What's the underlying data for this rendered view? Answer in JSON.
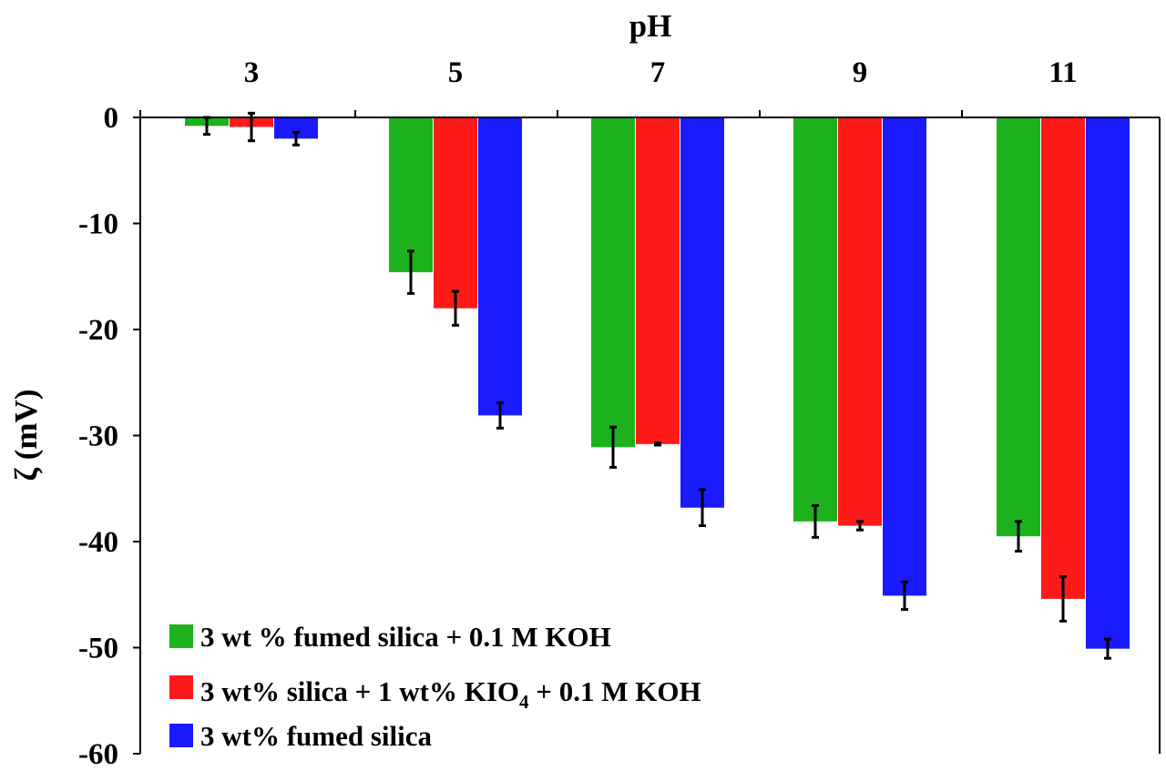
{
  "chart_data": {
    "type": "bar",
    "title": "pH",
    "xlabel": "pH",
    "ylabel": "ζ (mV)",
    "categories": [
      "3",
      "5",
      "7",
      "9",
      "11"
    ],
    "ylim": [
      -60,
      0
    ],
    "yticks": [
      0,
      -10,
      -20,
      -30,
      -40,
      -50,
      -60
    ],
    "x_axis_position": "top",
    "legend_position": "bottom-left",
    "series": [
      {
        "name": "3 wt % fumed silica + 0.1 M KOH",
        "color": "#1db21d",
        "values": [
          -0.8,
          -14.6,
          -31.1,
          -38.1,
          -39.5
        ],
        "errors": [
          0.8,
          2.0,
          1.9,
          1.5,
          1.4
        ]
      },
      {
        "name": "3 wt% silica + 1 wt% KIO4 + 0.1 M KOH",
        "name_main": "3 wt% silica + 1 wt% KIO",
        "name_sub": "4",
        "name_tail": " + 0.1 M KOH",
        "color": "#ff1a1a",
        "values": [
          -0.9,
          -18.0,
          -30.8,
          -38.5,
          -45.4
        ],
        "errors": [
          1.3,
          1.6,
          0.1,
          0.4,
          2.1
        ]
      },
      {
        "name": "3 wt% fumed silica",
        "color": "#1a1aff",
        "values": [
          -2.0,
          -28.1,
          -36.8,
          -45.1,
          -50.1
        ],
        "errors": [
          0.6,
          1.2,
          1.7,
          1.3,
          0.9
        ]
      }
    ]
  }
}
